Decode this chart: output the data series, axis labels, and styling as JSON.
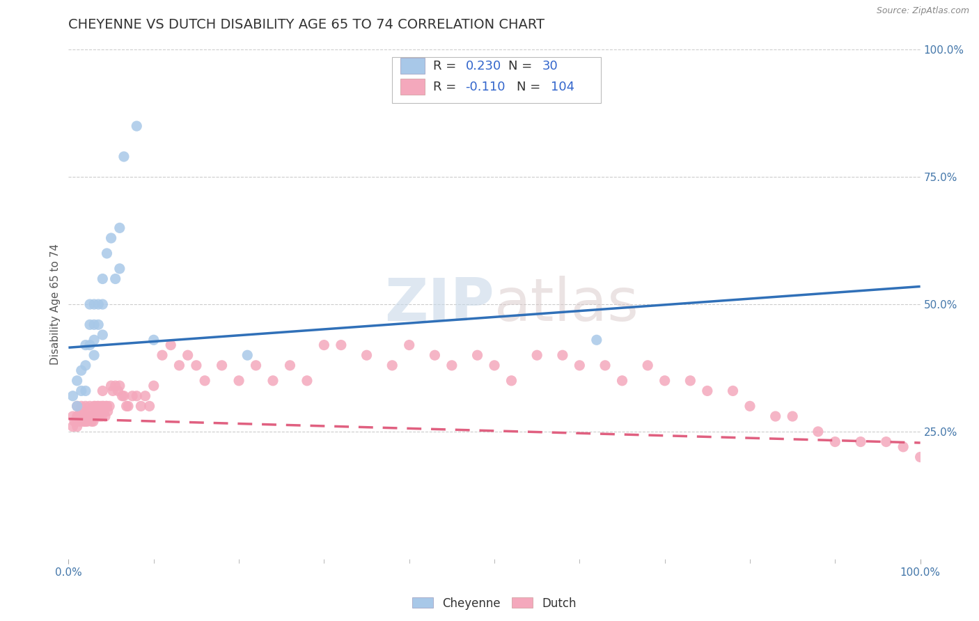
{
  "title": "CHEYENNE VS DUTCH DISABILITY AGE 65 TO 74 CORRELATION CHART",
  "source": "Source: ZipAtlas.com",
  "ylabel": "Disability Age 65 to 74",
  "watermark": "ZIPatlas",
  "xlim": [
    0.0,
    1.0
  ],
  "ylim": [
    0.0,
    1.0
  ],
  "yticks_right": [
    0.25,
    0.5,
    0.75,
    1.0
  ],
  "cheyenne_color": "#a8c8e8",
  "dutch_color": "#f4a8bc",
  "cheyenne_line_color": "#3070b8",
  "dutch_line_color": "#e06080",
  "background_color": "#ffffff",
  "grid_color": "#cccccc",
  "title_color": "#333333",
  "title_fontsize": 14,
  "axis_label_fontsize": 11,
  "legend_fontsize": 13,
  "cheyenne_x": [
    0.005,
    0.01,
    0.01,
    0.015,
    0.015,
    0.02,
    0.02,
    0.02,
    0.025,
    0.025,
    0.025,
    0.03,
    0.03,
    0.03,
    0.03,
    0.035,
    0.035,
    0.04,
    0.04,
    0.04,
    0.045,
    0.05,
    0.055,
    0.06,
    0.06,
    0.065,
    0.08,
    0.1,
    0.21,
    0.62
  ],
  "cheyenne_y": [
    0.32,
    0.35,
    0.3,
    0.37,
    0.33,
    0.42,
    0.38,
    0.33,
    0.5,
    0.46,
    0.42,
    0.5,
    0.46,
    0.43,
    0.4,
    0.5,
    0.46,
    0.55,
    0.5,
    0.44,
    0.6,
    0.63,
    0.55,
    0.65,
    0.57,
    0.79,
    0.85,
    0.43,
    0.4,
    0.43
  ],
  "dutch_x": [
    0.005,
    0.005,
    0.007,
    0.01,
    0.01,
    0.01,
    0.012,
    0.013,
    0.014,
    0.015,
    0.015,
    0.016,
    0.017,
    0.018,
    0.019,
    0.02,
    0.02,
    0.02,
    0.021,
    0.022,
    0.023,
    0.024,
    0.025,
    0.025,
    0.026,
    0.027,
    0.028,
    0.029,
    0.03,
    0.03,
    0.031,
    0.032,
    0.033,
    0.034,
    0.035,
    0.036,
    0.037,
    0.038,
    0.039,
    0.04,
    0.04,
    0.041,
    0.042,
    0.043,
    0.044,
    0.045,
    0.046,
    0.048,
    0.05,
    0.052,
    0.055,
    0.058,
    0.06,
    0.063,
    0.065,
    0.068,
    0.07,
    0.075,
    0.08,
    0.085,
    0.09,
    0.095,
    0.1,
    0.11,
    0.12,
    0.13,
    0.14,
    0.15,
    0.16,
    0.18,
    0.2,
    0.22,
    0.24,
    0.26,
    0.28,
    0.3,
    0.32,
    0.35,
    0.38,
    0.4,
    0.43,
    0.45,
    0.48,
    0.5,
    0.52,
    0.55,
    0.58,
    0.6,
    0.63,
    0.65,
    0.68,
    0.7,
    0.73,
    0.75,
    0.78,
    0.8,
    0.83,
    0.85,
    0.88,
    0.9,
    0.93,
    0.96,
    0.98,
    1.0
  ],
  "dutch_y": [
    0.28,
    0.26,
    0.27,
    0.3,
    0.28,
    0.26,
    0.28,
    0.27,
    0.29,
    0.3,
    0.28,
    0.28,
    0.27,
    0.28,
    0.27,
    0.3,
    0.28,
    0.27,
    0.28,
    0.27,
    0.29,
    0.28,
    0.3,
    0.28,
    0.28,
    0.27,
    0.28,
    0.27,
    0.3,
    0.28,
    0.3,
    0.28,
    0.29,
    0.3,
    0.3,
    0.28,
    0.29,
    0.3,
    0.28,
    0.33,
    0.3,
    0.3,
    0.29,
    0.28,
    0.3,
    0.3,
    0.29,
    0.3,
    0.34,
    0.33,
    0.34,
    0.33,
    0.34,
    0.32,
    0.32,
    0.3,
    0.3,
    0.32,
    0.32,
    0.3,
    0.32,
    0.3,
    0.34,
    0.4,
    0.42,
    0.38,
    0.4,
    0.38,
    0.35,
    0.38,
    0.35,
    0.38,
    0.35,
    0.38,
    0.35,
    0.42,
    0.42,
    0.4,
    0.38,
    0.42,
    0.4,
    0.38,
    0.4,
    0.38,
    0.35,
    0.4,
    0.4,
    0.38,
    0.38,
    0.35,
    0.38,
    0.35,
    0.35,
    0.33,
    0.33,
    0.3,
    0.28,
    0.28,
    0.25,
    0.23,
    0.23,
    0.23,
    0.22,
    0.2
  ],
  "chey_trend_x0": 0.0,
  "chey_trend_y0": 0.415,
  "chey_trend_x1": 1.0,
  "chey_trend_y1": 0.535,
  "dutch_trend_x0": 0.0,
  "dutch_trend_y0": 0.275,
  "dutch_trend_x1": 1.0,
  "dutch_trend_y1": 0.228
}
